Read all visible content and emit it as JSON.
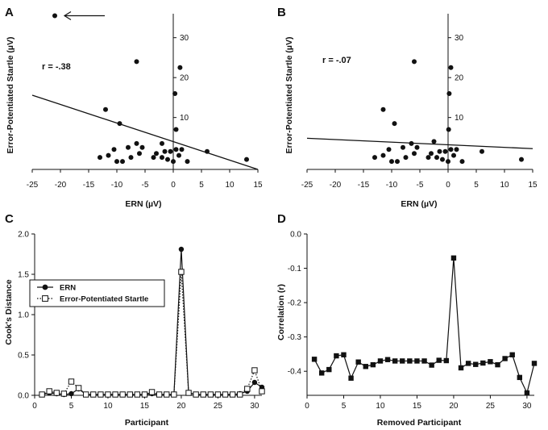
{
  "colors": {
    "ink": "#111111",
    "background": "#ffffff"
  },
  "chart_data": [
    {
      "panel": "A",
      "type": "scatter",
      "xlabel": "ERN (µV)",
      "ylabel": "Error-Potentiated Startle (µV)",
      "xlim": [
        -25,
        15
      ],
      "ylim": [
        -3,
        36
      ],
      "xticks": [
        -25,
        -20,
        -15,
        -10,
        -5,
        0,
        5,
        10,
        15
      ],
      "yticks": [
        10,
        20,
        30
      ],
      "annotation": "r = -.38",
      "outlier_arrow": true,
      "regression": {
        "x": [
          -25,
          15
        ],
        "y": [
          15.6,
          -3
        ]
      },
      "points": {
        "x": [
          -21,
          -6.5,
          1.2,
          0.3,
          0.5,
          -12,
          -9.5,
          -2,
          -10.5,
          -8,
          -6.5,
          -5.5,
          -3,
          -1.5,
          -0.5,
          0.5,
          1.5,
          6,
          13,
          -13,
          -11.5,
          -10,
          -9,
          -7.5,
          -6,
          -3.5,
          -2,
          -1,
          0,
          1,
          2.5
        ],
        "y": [
          35.5,
          24,
          22.5,
          16,
          7,
          12,
          8.5,
          3.5,
          2,
          2.5,
          3.5,
          2.5,
          1,
          1.5,
          1.5,
          2,
          2,
          1.5,
          -0.5,
          0,
          0.5,
          -1,
          -1,
          0,
          1,
          0,
          0,
          -0.5,
          -1,
          0.5,
          -1
        ]
      }
    },
    {
      "panel": "B",
      "type": "scatter",
      "xlabel": "ERN (µV)",
      "ylabel": "Error-Potentiated Startle (µV)",
      "xlim": [
        -25,
        15
      ],
      "ylim": [
        -3,
        36
      ],
      "xticks": [
        -25,
        -20,
        -15,
        -10,
        -5,
        0,
        5,
        10,
        15
      ],
      "yticks": [
        10,
        20,
        30
      ],
      "annotation": "r = -.07",
      "outlier_arrow": false,
      "regression": {
        "x": [
          -25,
          15
        ],
        "y": [
          4.8,
          2.2
        ]
      },
      "points": {
        "x": [
          -6,
          0.5,
          0.2,
          0.1,
          -11.5,
          -9.5,
          -2.5,
          -10.5,
          -8,
          -6.5,
          -5.5,
          -3,
          -1.5,
          -0.5,
          0.5,
          1.5,
          6,
          13,
          -13,
          -11.5,
          -10,
          -9,
          -7.5,
          -6,
          -3.5,
          -2,
          -1,
          0,
          1,
          2.5
        ],
        "y": [
          24,
          22.5,
          16,
          7,
          12,
          8.5,
          4,
          2,
          2.5,
          3.5,
          2.5,
          1,
          1.5,
          1.5,
          2,
          2,
          1.5,
          -0.5,
          0,
          0.5,
          -1,
          -1,
          0,
          1,
          0,
          0,
          -0.5,
          -1,
          0.5,
          -1
        ]
      }
    },
    {
      "panel": "C",
      "type": "line",
      "xlabel": "Participant",
      "ylabel": "Cook's Distance",
      "xlim": [
        0,
        31
      ],
      "ylim": [
        0,
        2.0
      ],
      "xticks": [
        0,
        5,
        10,
        15,
        20,
        25,
        30
      ],
      "yticks": [
        0.0,
        0.5,
        1.0,
        1.5,
        2.0
      ],
      "ytick_labels": [
        "0.0",
        "0.5",
        "1.0",
        "1.5",
        "2.0"
      ],
      "x": [
        1,
        2,
        3,
        4,
        5,
        6,
        7,
        8,
        9,
        10,
        11,
        12,
        13,
        14,
        15,
        16,
        17,
        18,
        19,
        20,
        21,
        22,
        23,
        24,
        25,
        26,
        27,
        28,
        29,
        30,
        31
      ],
      "series": [
        {
          "name": "ERN",
          "marker": "filled-circle",
          "line": "solid",
          "values": [
            0.01,
            0.03,
            0.02,
            0.01,
            0.02,
            0.08,
            0.01,
            0.01,
            0.01,
            0.01,
            0.01,
            0.01,
            0.01,
            0.01,
            0.01,
            0.02,
            0.01,
            0.01,
            0.01,
            1.81,
            0.03,
            0.01,
            0.01,
            0.01,
            0.01,
            0.01,
            0.01,
            0.02,
            0.05,
            0.16,
            0.1
          ]
        },
        {
          "name": "Error-Potentiated Startle",
          "marker": "open-square",
          "line": "dotted",
          "values": [
            0.01,
            0.05,
            0.03,
            0.02,
            0.17,
            0.09,
            0.01,
            0.01,
            0.01,
            0.01,
            0.01,
            0.01,
            0.01,
            0.01,
            0.01,
            0.04,
            0.01,
            0.01,
            0.01,
            1.53,
            0.03,
            0.01,
            0.01,
            0.01,
            0.01,
            0.01,
            0.01,
            0.01,
            0.08,
            0.31,
            0.05
          ]
        }
      ],
      "legend": [
        "ERN",
        "Error-Potentiated Startle"
      ]
    },
    {
      "panel": "D",
      "type": "line",
      "xlabel": "Removed Participant",
      "ylabel": "Correlation (r)",
      "xlim": [
        0,
        31
      ],
      "ylim": [
        -0.47,
        0.0
      ],
      "xticks": [
        0,
        5,
        10,
        15,
        20,
        25,
        30
      ],
      "yticks": [
        0.0,
        -0.1,
        -0.2,
        -0.3,
        -0.4
      ],
      "ytick_labels": [
        "0.0",
        "-0.1",
        "-0.2",
        "-0.3",
        "-0.4"
      ],
      "x": [
        1,
        2,
        3,
        4,
        5,
        6,
        7,
        8,
        9,
        10,
        11,
        12,
        13,
        14,
        15,
        16,
        17,
        18,
        19,
        20,
        21,
        22,
        23,
        24,
        25,
        26,
        27,
        28,
        29,
        30,
        31
      ],
      "series": [
        {
          "name": "Correlation",
          "marker": "filled-square",
          "line": "solid",
          "values": [
            -0.365,
            -0.405,
            -0.395,
            -0.355,
            -0.352,
            -0.42,
            -0.373,
            -0.386,
            -0.381,
            -0.37,
            -0.366,
            -0.37,
            -0.37,
            -0.37,
            -0.37,
            -0.37,
            -0.382,
            -0.368,
            -0.369,
            -0.07,
            -0.39,
            -0.377,
            -0.38,
            -0.376,
            -0.372,
            -0.381,
            -0.363,
            -0.352,
            -0.418,
            -0.463,
            -0.377
          ]
        }
      ]
    }
  ]
}
